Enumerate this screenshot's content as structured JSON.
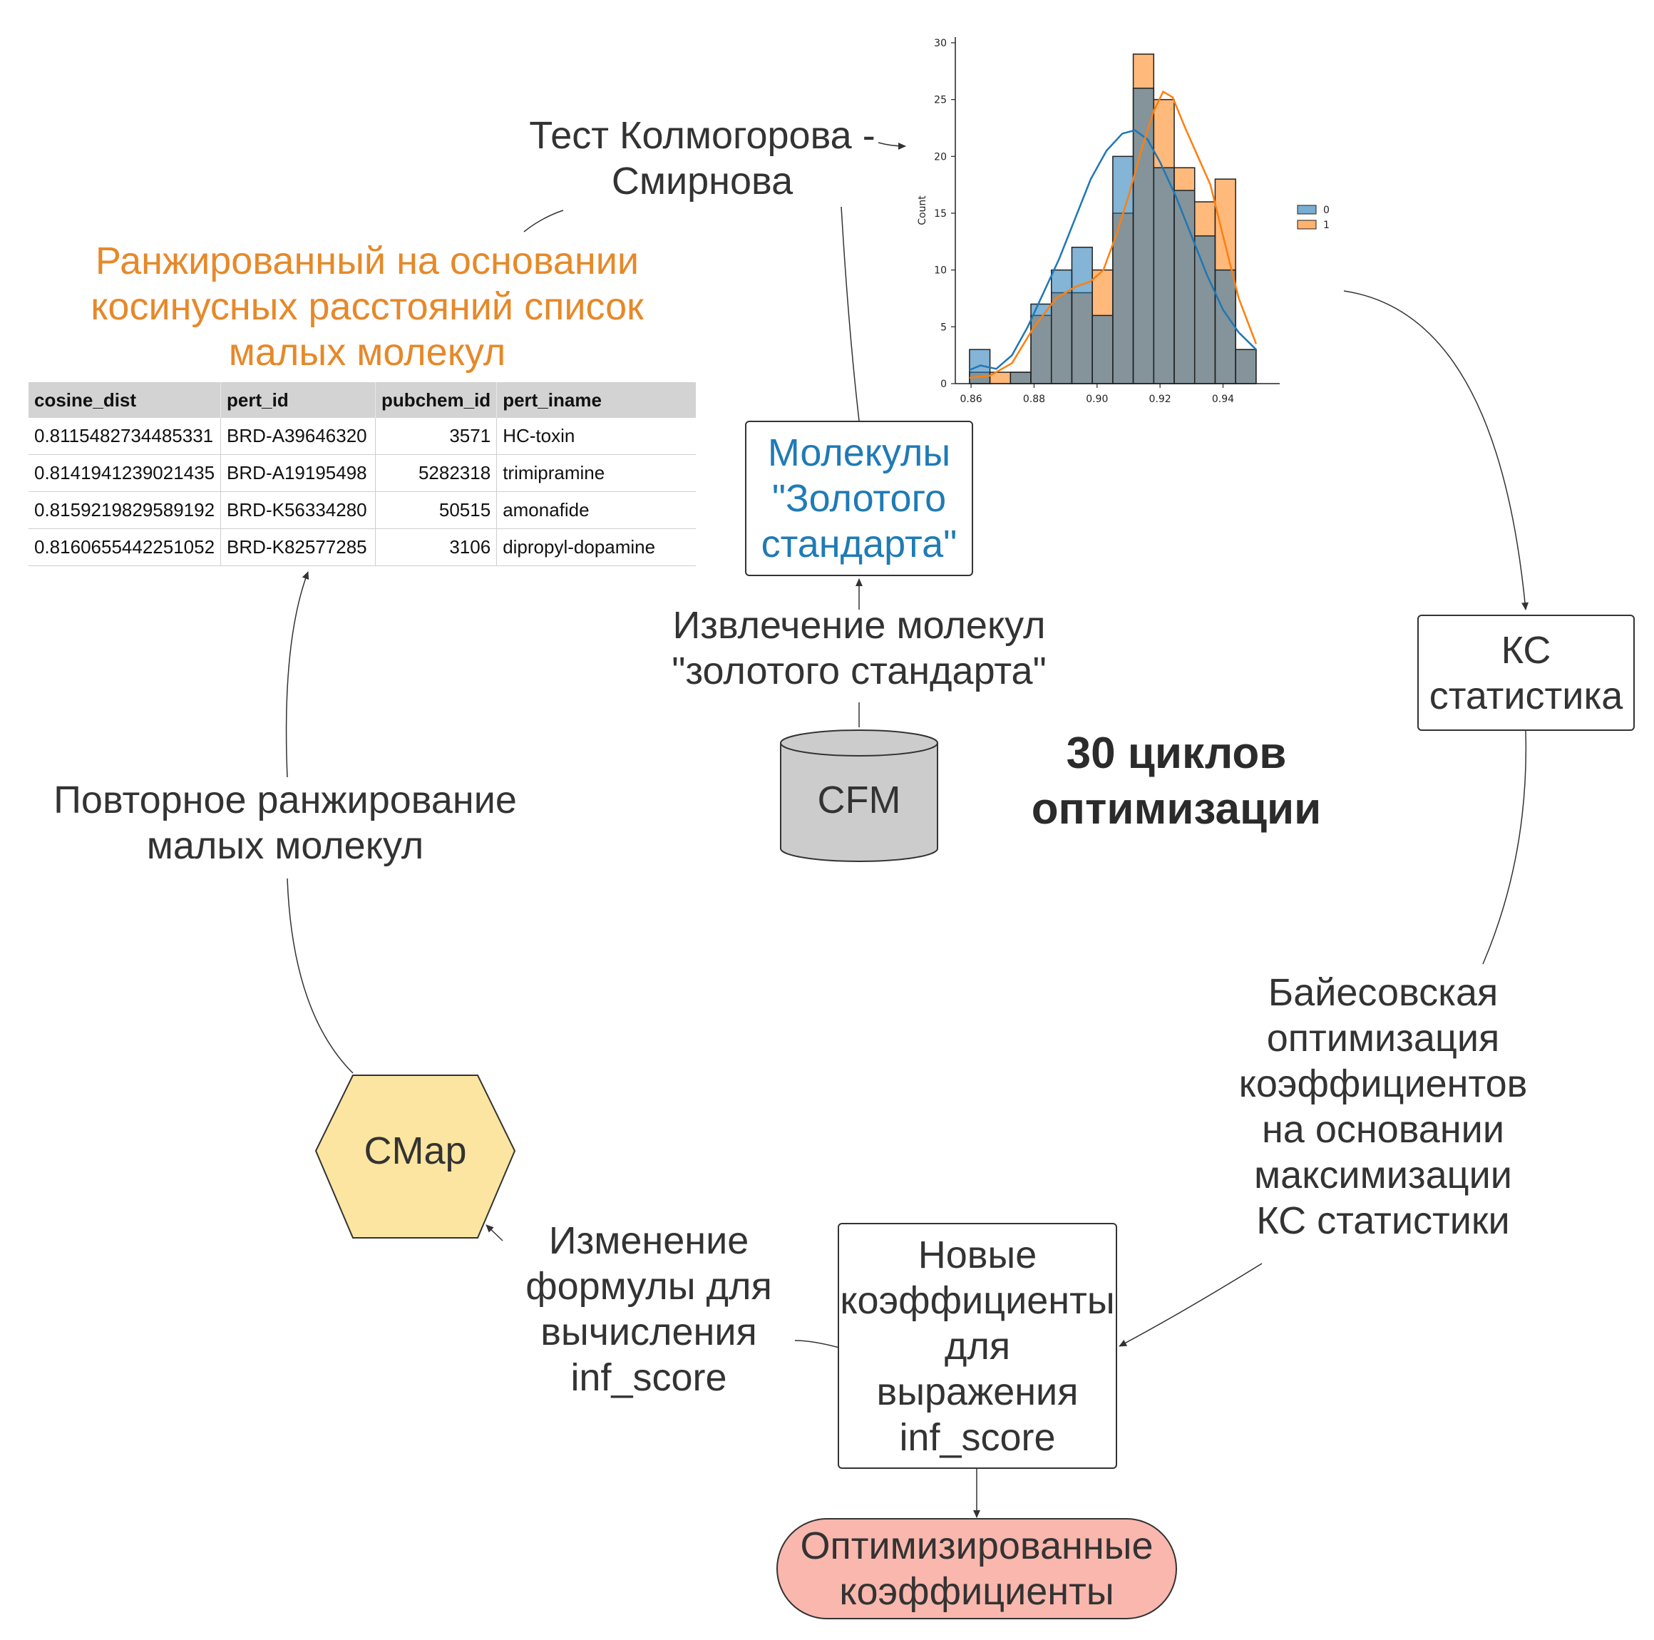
{
  "colors": {
    "text": "#333333",
    "orange": "#e6892a",
    "blue": "#1f7bb6",
    "hex_fill": "#fbe5a0",
    "db_fill": "#cccccc",
    "pill_fill": "#f9b7ad",
    "series0": "#1f77b4",
    "series1": "#ff7f0e"
  },
  "labels": {
    "ks_test": "Тест Колмогорова - Смирнова",
    "ranked_list": "Ранжированный на основании косинусных расстояний список малых молекул",
    "gold_molecules": "Молекулы \"Золотого стандарта\"",
    "extraction": "Извлечение молекул \"золотого стандарта\"",
    "database": "CFM",
    "cycles": "30 циклов оптимизации",
    "ks_stat": "КС статистика",
    "bayes": "Байесовская оптимизация коэффициентов на основании максимизации КС статистики",
    "new_coefs": "Новые коэффициенты для выражения inf_score",
    "optimized": "Оптимизированные коэффициенты",
    "formula_change": "Изменение формулы для вычисления inf_score",
    "cmap": "CMap",
    "reranking": "Повторное ранжирование малых молекул"
  },
  "table": {
    "headers": [
      "cosine_dist",
      "pert_id",
      "pubchem_id",
      "pert_iname"
    ],
    "rows": [
      [
        "0.8115482734485331",
        "BRD-A39646320",
        "3571",
        "HC-toxin"
      ],
      [
        "0.8141941239021435",
        "BRD-A19195498",
        "5282318",
        "trimipramine"
      ],
      [
        "0.8159219829589192",
        "BRD-K56334280",
        "50515",
        "amonafide"
      ],
      [
        "0.8160655442251052",
        "BRD-K82577285",
        "3106",
        "dipropyl-dopamine"
      ]
    ]
  },
  "chart_data": {
    "type": "bar",
    "xlabel": "",
    "ylabel": "Count",
    "xlim": [
      0.855,
      0.958
    ],
    "ylim": [
      0,
      30.5
    ],
    "xticks": [
      "0.86",
      "0.88",
      "0.90",
      "0.92",
      "0.94"
    ],
    "yticks": [
      "0",
      "5",
      "10",
      "15",
      "20",
      "25",
      "30"
    ],
    "bin_edges": [
      0.8595,
      0.866,
      0.8725,
      0.879,
      0.8855,
      0.892,
      0.8985,
      0.905,
      0.9115,
      0.918,
      0.9245,
      0.931,
      0.9375,
      0.944,
      0.9505
    ],
    "legend": {
      "position": "right",
      "entries": [
        "0",
        "1"
      ]
    },
    "series": [
      {
        "name": "0",
        "values": [
          3,
          0,
          1,
          7,
          10,
          12,
          6,
          20,
          26,
          19,
          17,
          13,
          10,
          3
        ]
      },
      {
        "name": "1",
        "values": [
          1,
          1,
          1,
          6,
          8,
          8,
          10,
          15,
          29,
          25,
          19,
          16,
          18,
          3
        ]
      }
    ],
    "kde": [
      {
        "x": [
          0.8595,
          0.863,
          0.868,
          0.873,
          0.878,
          0.883,
          0.888,
          0.893,
          0.898,
          0.903,
          0.908,
          0.912,
          0.916,
          0.92,
          0.925,
          0.93,
          0.935,
          0.94,
          0.945,
          0.9505
        ],
        "y": [
          1.2,
          1.6,
          1.3,
          2.5,
          5.0,
          8.0,
          11.0,
          14.5,
          18.0,
          20.5,
          22.0,
          22.3,
          21.5,
          19.5,
          16.5,
          13.0,
          9.5,
          6.5,
          4.5,
          3.0
        ]
      },
      {
        "x": [
          0.8595,
          0.866,
          0.873,
          0.88,
          0.887,
          0.893,
          0.898,
          0.902,
          0.906,
          0.91,
          0.914,
          0.918,
          0.921,
          0.924,
          0.928,
          0.932,
          0.936,
          0.94,
          0.945,
          0.9505
        ],
        "y": [
          0.5,
          0.7,
          1.8,
          5.0,
          7.5,
          8.5,
          9.0,
          10.0,
          13.0,
          16.5,
          20.5,
          24.0,
          25.7,
          25.2,
          22.5,
          20.0,
          17.5,
          13.0,
          7.5,
          3.5
        ]
      }
    ]
  }
}
